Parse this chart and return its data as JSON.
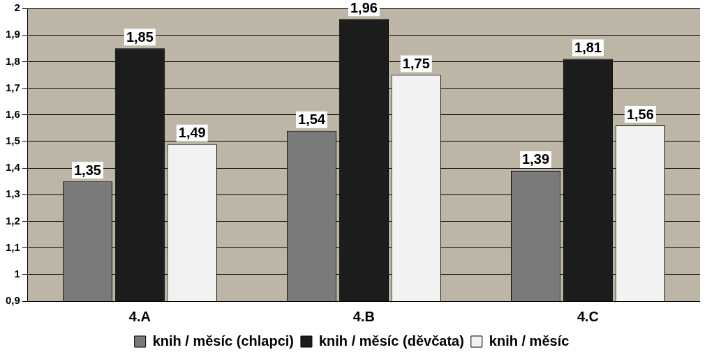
{
  "chart_data": {
    "type": "bar",
    "categories": [
      "4.A",
      "4.B",
      "4.C"
    ],
    "series": [
      {
        "name": "knih / měsíc (chlapci)",
        "color": "#7a7a7a",
        "values": [
          1.35,
          1.54,
          1.39
        ],
        "value_labels": [
          "1,35",
          "1,54",
          "1,39"
        ]
      },
      {
        "name": "knih / měsíc (děvčata)",
        "color": "#1c1c1c",
        "values": [
          1.85,
          1.96,
          1.81
        ],
        "value_labels": [
          "1,85",
          "1,96",
          "1,81"
        ]
      },
      {
        "name": "knih / měsíc",
        "color": "#f2f2f2",
        "values": [
          1.49,
          1.75,
          1.56
        ],
        "value_labels": [
          "1,49",
          "1,75",
          "1,56"
        ]
      }
    ],
    "ylim": [
      0.9,
      2
    ],
    "yticks": [
      {
        "value": 0.9,
        "label": "0,9"
      },
      1,
      {
        "value": 1.1,
        "label": "1,1"
      },
      {
        "value": 1.2,
        "label": "1,2"
      },
      {
        "value": 1.3,
        "label": "1,3"
      },
      {
        "value": 1.4,
        "label": "1,4"
      },
      {
        "value": 1.5,
        "label": "1,5"
      },
      {
        "value": 1.6,
        "label": "1,6"
      },
      {
        "value": 1.7,
        "label": "1,7"
      },
      {
        "value": 1.8,
        "label": "1,8"
      },
      {
        "value": 1.9,
        "label": "1,9"
      },
      2
    ],
    "grid": "y",
    "legend": "bottom"
  }
}
